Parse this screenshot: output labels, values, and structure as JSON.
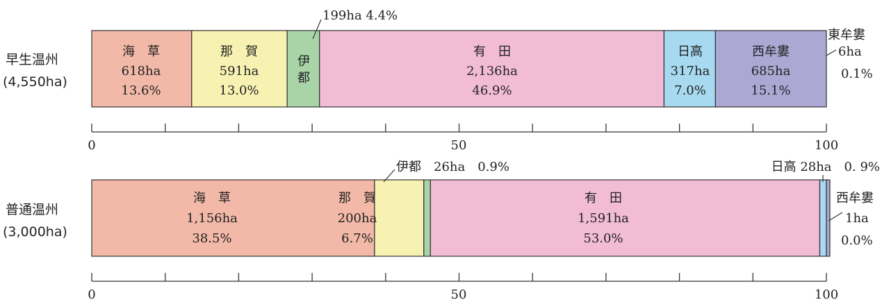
{
  "chart_data": [
    {
      "type": "bar",
      "orientation": "horizontal-stacked",
      "category_label": "早生温州",
      "total_label": "(4,550ha)",
      "x_range": [
        0,
        100
      ],
      "tick_labels": [
        "0",
        "50",
        "100"
      ],
      "segments": [
        {
          "name": "海　草",
          "area": "618ha",
          "share": "13.6%",
          "value": 13.6,
          "color": "#f2b8a8"
        },
        {
          "name": "那　賀",
          "area": "591ha",
          "share": "13.0%",
          "value": 13.0,
          "color": "#f7f2b2"
        },
        {
          "name": "伊都",
          "area": "199ha",
          "share": "4.4%",
          "value": 4.4,
          "color": "#a8d4a8",
          "callout": "199ha 4.4%"
        },
        {
          "name": "有　田",
          "area": "2,136ha",
          "share": "46.9%",
          "value": 46.9,
          "color": "#f2bcd6"
        },
        {
          "name": "日高",
          "area": "317ha",
          "share": "7.0%",
          "value": 7.0,
          "color": "#a7daf0"
        },
        {
          "name": "西牟婁",
          "area": "685ha",
          "share": "15.1%",
          "value": 15.1,
          "color": "#aca8d4"
        },
        {
          "name": "東牟婁",
          "area": "6ha",
          "share": "0.1%",
          "value": 0.1,
          "color": "#ffffff"
        }
      ]
    },
    {
      "type": "bar",
      "orientation": "horizontal-stacked",
      "category_label": "普通温州",
      "total_label": "(3,000ha)",
      "x_range": [
        0,
        100
      ],
      "tick_labels": [
        "0",
        "50",
        "100"
      ],
      "segments": [
        {
          "name": "海　草",
          "area": "1,156ha",
          "share": "38.5%",
          "value": 38.5,
          "color": "#f2b8a8"
        },
        {
          "name": "那　賀",
          "area": "200ha",
          "share": "6.7%",
          "value": 6.7,
          "color": "#f7f2b2"
        },
        {
          "name": "伊都",
          "area": "26ha",
          "share": "0.9%",
          "value": 0.9,
          "color": "#a8d4a8",
          "callout": "伊都　26ha　0.9%"
        },
        {
          "name": "有　田",
          "area": "1,591ha",
          "share": "53.0%",
          "value": 53.0,
          "color": "#f2bcd6"
        },
        {
          "name": "日高",
          "area": "28ha",
          "share": "0.9%",
          "value": 0.9,
          "color": "#a7daf0",
          "callout": "日高 28ha　0. 9%"
        },
        {
          "name": "西牟婁",
          "area": "1ha",
          "share": "0.0%",
          "value": 0.0,
          "color": "#aca8d4"
        }
      ]
    }
  ]
}
